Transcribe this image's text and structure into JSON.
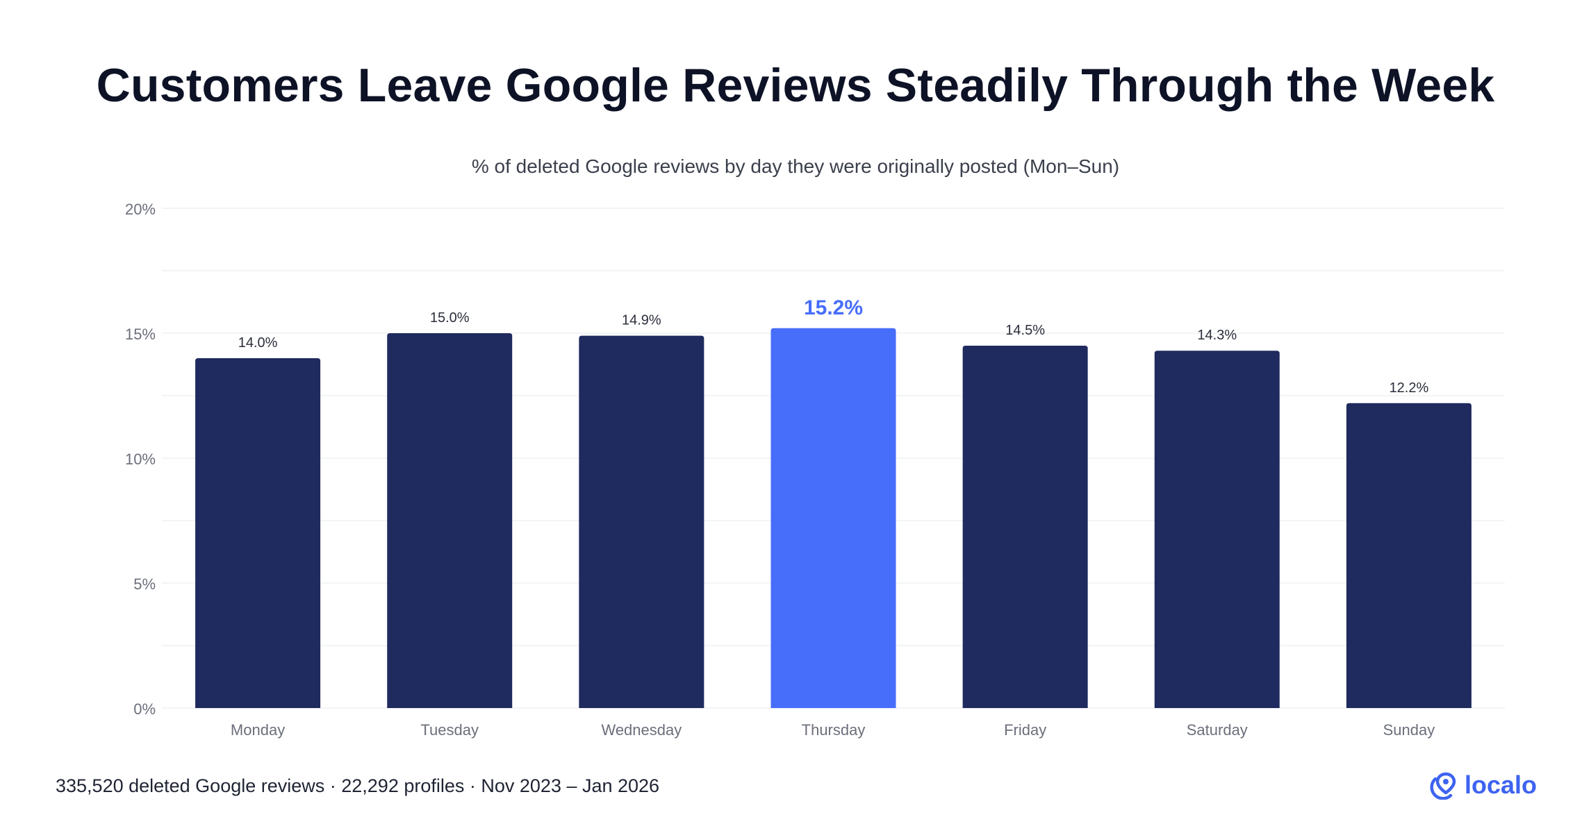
{
  "title": "Customers Leave Google Reviews Steadily Through the Week",
  "subtitle": "% of deleted Google reviews by day they were originally posted (Mon–Sun)",
  "footer": "335,520 deleted Google reviews · 22,292 profiles · Nov 2023 – Jan 2026",
  "brand": {
    "name": "localo",
    "icon": "location-pin-icon",
    "color": "#3d63f0"
  },
  "colors": {
    "bar": "#1f2a5e",
    "highlight": "#476dfb",
    "grid": "#eef0f4",
    "tick_text": "#6b6f7b",
    "label_text": "#2a2e3a"
  },
  "chart_data": {
    "type": "bar",
    "title": "Customers Leave Google Reviews Steadily Through the Week",
    "subtitle": "% of deleted Google reviews by day they were originally posted (Mon–Sun)",
    "categories": [
      "Monday",
      "Tuesday",
      "Wednesday",
      "Thursday",
      "Friday",
      "Saturday",
      "Sunday"
    ],
    "values": [
      14.0,
      15.0,
      14.9,
      15.2,
      14.5,
      14.3,
      12.2
    ],
    "value_labels": [
      "14.0%",
      "15.0%",
      "14.9%",
      "15.2%",
      "14.5%",
      "14.3%",
      "12.2%"
    ],
    "highlight_index": 3,
    "ylim": [
      0,
      20
    ],
    "yticks": [
      0,
      5,
      10,
      15,
      20
    ],
    "ytick_labels": [
      "0%",
      "5%",
      "10%",
      "15%",
      "20%"
    ],
    "grid": true,
    "xlabel": "",
    "ylabel": ""
  }
}
